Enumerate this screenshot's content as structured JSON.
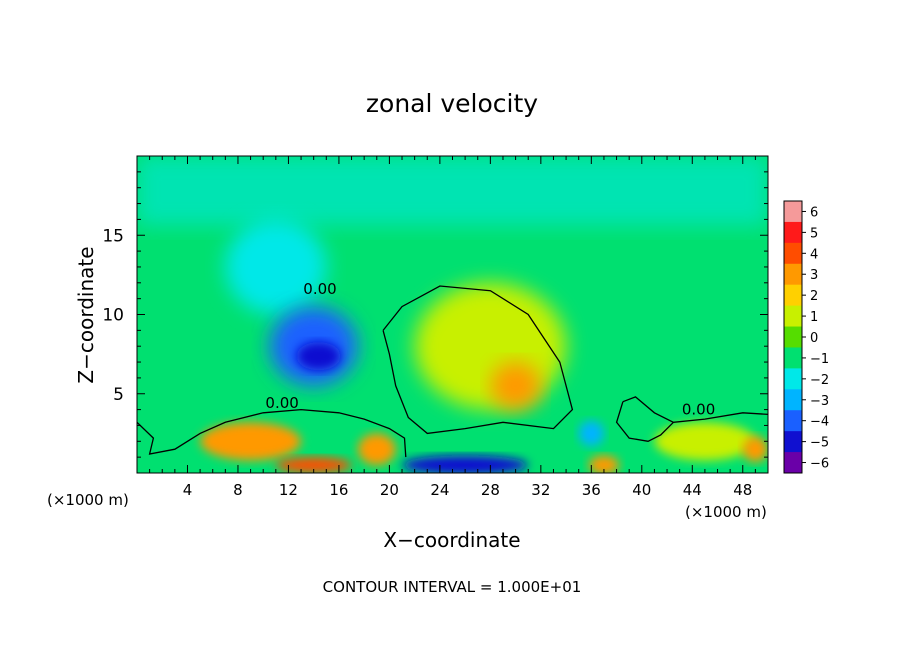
{
  "chart_data": {
    "type": "heatmap",
    "title": "zonal velocity",
    "xlabel": "X−coordinate",
    "ylabel": "Z−coordinate",
    "x_unit_left": "(×1000 m)",
    "x_unit_right": "(×1000 m)",
    "xlim": [
      0,
      50
    ],
    "ylim": [
      0,
      20
    ],
    "x_ticks": [
      4,
      8,
      12,
      16,
      20,
      24,
      28,
      32,
      36,
      40,
      44,
      48
    ],
    "x_tick_labels": [
      "4",
      "8",
      "12",
      "16",
      "20",
      "24",
      "28",
      "32",
      "36",
      "40",
      "44",
      "48"
    ],
    "y_ticks": [
      5,
      10,
      15
    ],
    "y_tick_labels": [
      "5",
      "10",
      "15"
    ],
    "colorbar": {
      "levels": [
        6,
        5,
        4,
        3,
        2,
        1,
        0,
        -1,
        -2,
        -3,
        -4,
        -5,
        -6
      ],
      "labels": [
        "6",
        "5",
        "4",
        "3",
        "2",
        "1",
        "0",
        "−1",
        "−2",
        "−3",
        "−4",
        "−5",
        "−6"
      ],
      "colors": [
        "#f59a9a",
        "#ff1a1a",
        "#ff4d00",
        "#ff9900",
        "#ffd000",
        "#c8f000",
        "#55dd00",
        "#00e070",
        "#00e8e8",
        "#00b4ff",
        "#1a60ff",
        "#1010d0",
        "#6a00a8"
      ]
    },
    "background_value": -1,
    "features": [
      {
        "x": 14,
        "z": 8,
        "value": -4,
        "rx": 3.5,
        "rz": 2.5
      },
      {
        "x": 11,
        "z": 13,
        "value": -2,
        "rx": 4,
        "rz": 3
      },
      {
        "x": 28,
        "z": 8,
        "value": 0.5,
        "rx": 6,
        "rz": 4
      },
      {
        "x": 30,
        "z": 5.5,
        "value": 2.5,
        "rx": 2,
        "rz": 1.5
      },
      {
        "x": 9,
        "z": 2,
        "value": 2.5,
        "rx": 4,
        "rz": 1.2
      },
      {
        "x": 19,
        "z": 1.5,
        "value": 3,
        "rx": 1.5,
        "rz": 1
      },
      {
        "x": 14,
        "z": 0.5,
        "value": 4,
        "rx": 3,
        "rz": 0.5
      },
      {
        "x": 26,
        "z": 0.5,
        "value": -5,
        "rx": 5,
        "rz": 0.6
      },
      {
        "x": 37,
        "z": 0.5,
        "value": 3,
        "rx": 1.2,
        "rz": 0.6
      },
      {
        "x": 49,
        "z": 1.5,
        "value": 3,
        "rx": 1,
        "rz": 0.8
      },
      {
        "x": 45,
        "z": 2,
        "value": 1,
        "rx": 4,
        "rz": 1.2
      },
      {
        "x": 36,
        "z": 2.5,
        "value": -3,
        "rx": 1,
        "rz": 0.8
      }
    ],
    "contour_level": 0,
    "contour_label": "0.00",
    "footer": "CONTOUR INTERVAL = 1.000E+01"
  }
}
